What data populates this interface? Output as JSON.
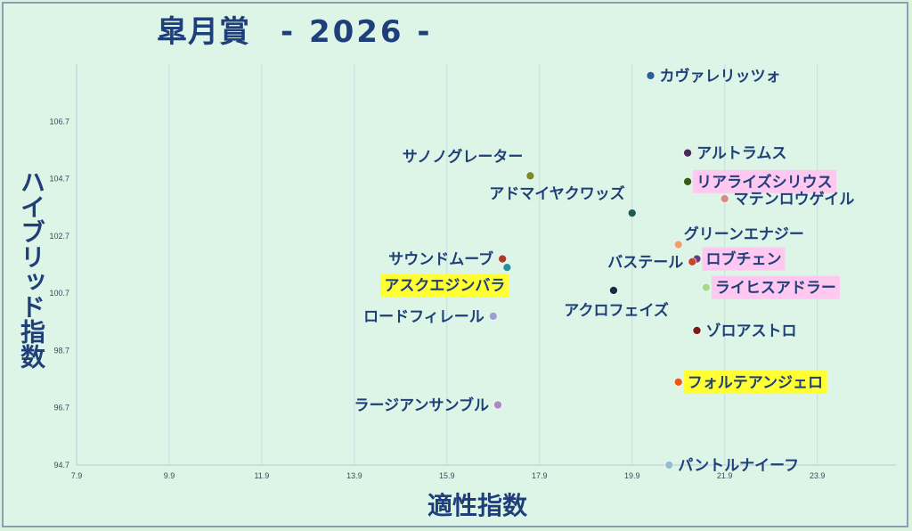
{
  "chart_data": {
    "type": "scatter",
    "title": "皐月賞",
    "subtitle": "- 2026 -",
    "xlabel": "適性指数",
    "ylabel": "ハイブリッド指数",
    "xlim": [
      7.9,
      25.6
    ],
    "ylim": [
      94.7,
      108.7
    ],
    "xticks": [
      "7.9",
      "9.9",
      "11.9",
      "13.9",
      "15.9",
      "17.9",
      "19.9",
      "21.9",
      "23.9"
    ],
    "yticks": [
      "94.7",
      "96.7",
      "98.7",
      "100.7",
      "102.7",
      "104.7",
      "106.7"
    ],
    "grid": true,
    "colors": {
      "background": "#ddf5e6",
      "grid": "#c8d8ec",
      "text": "#1f3f7a",
      "highlight_yellow": "#ffff33",
      "highlight_pink": "#ffc8f0"
    },
    "points": [
      {
        "name": "カヴァレリッツォ",
        "x": 20.3,
        "y": 108.3,
        "color": "#2a5da0",
        "side": "right",
        "highlight": ""
      },
      {
        "name": "アルトラムス",
        "x": 21.1,
        "y": 105.6,
        "color": "#4a2a5a",
        "side": "right",
        "highlight": ""
      },
      {
        "name": "サノノグレーター",
        "x": 17.7,
        "y": 104.8,
        "color": "#7a8a2a",
        "side": "top-left",
        "highlight": ""
      },
      {
        "name": "リアライズシリウス",
        "x": 21.1,
        "y": 104.6,
        "color": "#3a5a1a",
        "side": "right",
        "highlight": "pink"
      },
      {
        "name": "マテンロウゲイル",
        "x": 21.9,
        "y": 104.0,
        "color": "#d88a8a",
        "side": "right",
        "highlight": ""
      },
      {
        "name": "アドマイヤクワッズ",
        "x": 19.9,
        "y": 103.5,
        "color": "#1f5a55",
        "side": "top-left",
        "highlight": ""
      },
      {
        "name": "グリーンエナジー",
        "x": 20.9,
        "y": 102.4,
        "color": "#f0a070",
        "side": "top-right",
        "highlight": ""
      },
      {
        "name": "サウンドムーブ",
        "x": 17.1,
        "y": 101.9,
        "color": "#b03a2a",
        "side": "left",
        "highlight": ""
      },
      {
        "name": "ロブチェン",
        "x": 21.3,
        "y": 101.9,
        "color": "#6a3a8a",
        "side": "right",
        "highlight": "pink"
      },
      {
        "name": "バステール",
        "x": 21.2,
        "y": 101.8,
        "color": "#c04a2a",
        "side": "left",
        "highlight": ""
      },
      {
        "name": "",
        "x": 17.2,
        "y": 101.6,
        "color": "#2a90a0",
        "side": "none",
        "highlight": ""
      },
      {
        "name": "アスクエジンバラ",
        "x": 17.2,
        "y": 101.6,
        "color": "#2a90a0",
        "side": "label-only",
        "highlight": "yellow"
      },
      {
        "name": "ライヒスアドラー",
        "x": 21.5,
        "y": 100.9,
        "color": "#a8d890",
        "side": "right",
        "highlight": "pink"
      },
      {
        "name": "アクロフェイズ",
        "x": 19.5,
        "y": 100.8,
        "color": "#1a2a4a",
        "side": "bottom-left",
        "highlight": ""
      },
      {
        "name": "ロードフィレール",
        "x": 16.9,
        "y": 99.9,
        "color": "#a0a0d0",
        "side": "left",
        "highlight": ""
      },
      {
        "name": "ゾロアストロ",
        "x": 21.3,
        "y": 99.4,
        "color": "#7a1a1a",
        "side": "right",
        "highlight": ""
      },
      {
        "name": "フォルテアンジェロ",
        "x": 20.9,
        "y": 97.6,
        "color": "#e85a10",
        "side": "right",
        "highlight": "yellow"
      },
      {
        "name": "ラージアンサンブル",
        "x": 17.0,
        "y": 96.8,
        "color": "#b088c0",
        "side": "left",
        "highlight": ""
      },
      {
        "name": "パントルナイーフ",
        "x": 20.7,
        "y": 94.7,
        "color": "#90c0d0",
        "side": "right",
        "highlight": ""
      }
    ]
  }
}
